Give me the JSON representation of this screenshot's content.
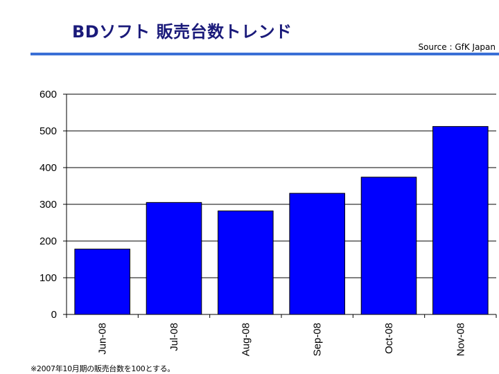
{
  "title": "BDソフト 販売台数トレンド",
  "source": "Source : GfK Japan",
  "footnote": "※2007年10月期の販売台数を100とする。",
  "colors": {
    "bar": "#0000ff",
    "title": "#1a1a7a",
    "rule": "#3a6fd6"
  },
  "chart_data": {
    "type": "bar",
    "title": "BDソフト 販売台数トレンド",
    "xlabel": "",
    "ylabel": "",
    "categories": [
      "Jun-08",
      "Jul-08",
      "Aug-08",
      "Sep-08",
      "Oct-08",
      "Nov-08"
    ],
    "values": [
      178,
      305,
      282,
      330,
      374,
      512
    ],
    "ylim": [
      0,
      600
    ],
    "yticks": [
      0,
      100,
      200,
      300,
      400,
      500,
      600
    ],
    "grid": true,
    "legend": "none"
  }
}
